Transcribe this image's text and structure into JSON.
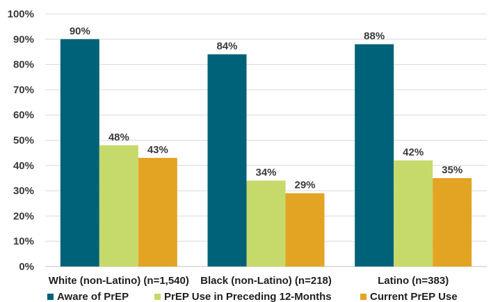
{
  "chart_data": {
    "type": "bar",
    "title": "",
    "xlabel": "",
    "ylabel": "",
    "ylim": [
      0,
      100
    ],
    "yticks": [
      "0%",
      "10%",
      "20%",
      "30%",
      "40%",
      "50%",
      "60%",
      "70%",
      "80%",
      "90%",
      "100%"
    ],
    "categories": [
      "White (non-Latino) (n=1,540)",
      "Black (non-Latino) (n=218)",
      "Latino (n=383)"
    ],
    "series": [
      {
        "name": "Aware of PrEP",
        "color": "#006279",
        "values": [
          90,
          84,
          88
        ],
        "labels": [
          "90%",
          "84%",
          "88%"
        ]
      },
      {
        "name": "PrEP Use in Preceding 12-Months",
        "color": "#c6d96b",
        "values": [
          48,
          34,
          42
        ],
        "labels": [
          "48%",
          "34%",
          "42%"
        ]
      },
      {
        "name": "Current PrEP Use",
        "color": "#e3a423",
        "values": [
          43,
          29,
          35
        ],
        "labels": [
          "43%",
          "29%",
          "35%"
        ]
      }
    ],
    "grid": true,
    "legend_position": "bottom"
  }
}
